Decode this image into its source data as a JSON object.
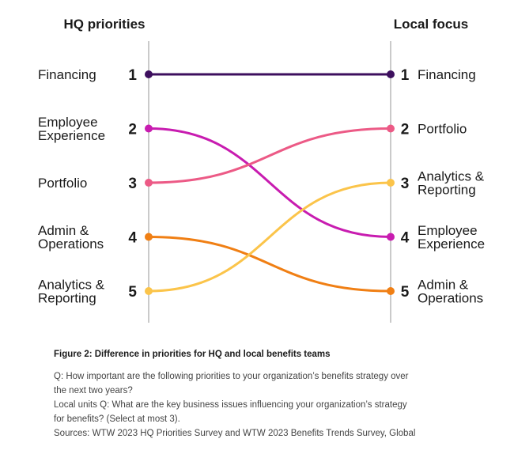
{
  "chart_data": {
    "type": "slope",
    "left_header": "HQ priorities",
    "right_header": "Local focus",
    "series": [
      {
        "name": "Financing",
        "left_label": [
          "Financing"
        ],
        "right_label": [
          "Financing"
        ],
        "hq_rank": 1,
        "local_rank": 1,
        "color": "#3d0f5e"
      },
      {
        "name": "Employee Experience",
        "left_label": [
          "Employee",
          "Experience"
        ],
        "right_label": [
          "Employee",
          "Experience"
        ],
        "hq_rank": 2,
        "local_rank": 4,
        "color": "#c81cb0"
      },
      {
        "name": "Portfolio",
        "left_label": [
          "Portfolio"
        ],
        "right_label": [
          "Portfolio"
        ],
        "hq_rank": 3,
        "local_rank": 2,
        "color": "#ec5a86"
      },
      {
        "name": "Admin & Operations",
        "left_label": [
          "Admin &",
          "Operations"
        ],
        "right_label": [
          "Admin &",
          "Operations"
        ],
        "hq_rank": 4,
        "local_rank": 5,
        "color": "#f07f14"
      },
      {
        "name": "Analytics & Reporting",
        "left_label": [
          "Analytics &",
          "Reporting"
        ],
        "right_label": [
          "Analytics &",
          "Reporting"
        ],
        "hq_rank": 5,
        "local_rank": 3,
        "color": "#fbc44a"
      }
    ]
  },
  "caption": {
    "title": "Figure 2: Difference in priorities for HQ and local benefits teams",
    "notes": [
      "Q: How important are the following priorities to your organization’s benefits strategy over",
      "the next two years?",
      "Local units Q: What are the key business issues influencing your organization’s strategy",
      "for benefits? (Select at most 3).",
      "Sources: WTW 2023 HQ Priorities Survey and WTW 2023 Benefits Trends Survey, Global"
    ]
  }
}
